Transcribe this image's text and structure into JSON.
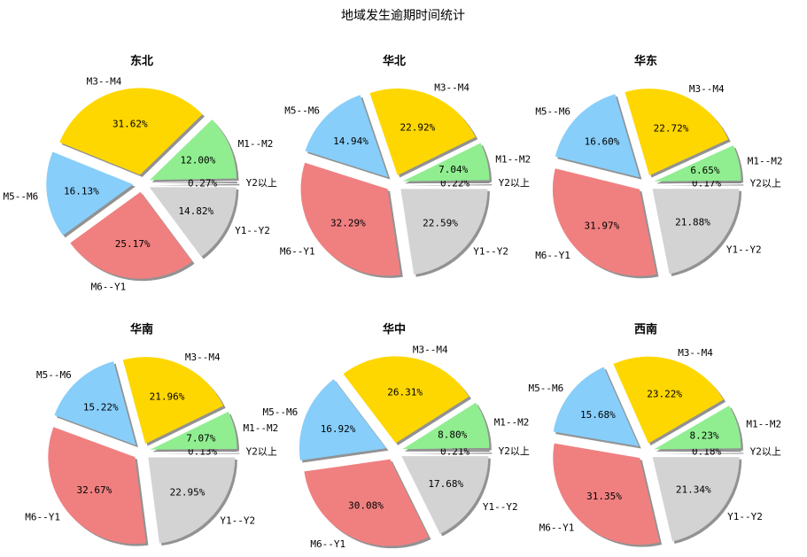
{
  "title": "地域发生逾期时间统计",
  "chart_data": [
    {
      "type": "pie",
      "title": "东北",
      "categories": [
        "Y2以上",
        "M1--M2",
        "M3--M4",
        "M5--M6",
        "M6--Y1",
        "Y1--Y2"
      ],
      "values": [
        0.27,
        12.0,
        31.62,
        16.13,
        25.17,
        14.82
      ],
      "labels": [
        "0.27%",
        "12.00%",
        "31.62%",
        "16.13%",
        "25.17%",
        "14.82%"
      ]
    },
    {
      "type": "pie",
      "title": "华北",
      "categories": [
        "Y2以上",
        "M1--M2",
        "M3--M4",
        "M5--M6",
        "M6--Y1",
        "Y1--Y2"
      ],
      "values": [
        0.22,
        7.04,
        22.92,
        14.94,
        32.29,
        22.59
      ],
      "labels": [
        "0.22%",
        "7.04%",
        "22.92%",
        "14.94%",
        "32.29%",
        "22.59%"
      ]
    },
    {
      "type": "pie",
      "title": "华东",
      "categories": [
        "Y2以上",
        "M1--M2",
        "M3--M4",
        "M5--M6",
        "M6--Y1",
        "Y1--Y2"
      ],
      "values": [
        0.17,
        6.65,
        22.72,
        16.6,
        31.97,
        21.88
      ],
      "labels": [
        "0.17%",
        "6.65%",
        "22.72%",
        "16.60%",
        "31.97%",
        "21.88%"
      ]
    },
    {
      "type": "pie",
      "title": "华南",
      "categories": [
        "Y2以上",
        "M1--M2",
        "M3--M4",
        "M5--M6",
        "M6--Y1",
        "Y1--Y2"
      ],
      "values": [
        0.13,
        7.07,
        21.96,
        15.22,
        32.67,
        22.95
      ],
      "labels": [
        "0.13%",
        "7.07%",
        "21.96%",
        "15.22%",
        "32.67%",
        "22.95%"
      ]
    },
    {
      "type": "pie",
      "title": "华中",
      "categories": [
        "Y2以上",
        "M1--M2",
        "M3--M4",
        "M5--M6",
        "M6--Y1",
        "Y1--Y2"
      ],
      "values": [
        0.21,
        8.8,
        26.31,
        16.92,
        30.08,
        17.68
      ],
      "labels": [
        "0.21%",
        "8.80%",
        "26.31%",
        "16.92%",
        "30.08%",
        "17.68%"
      ]
    },
    {
      "type": "pie",
      "title": "西南",
      "categories": [
        "Y2以上",
        "M1--M2",
        "M3--M4",
        "M5--M6",
        "M6--Y1",
        "Y1--Y2"
      ],
      "values": [
        0.18,
        8.23,
        23.22,
        15.68,
        31.35,
        21.34
      ],
      "labels": [
        "0.18%",
        "8.23%",
        "23.22%",
        "15.68%",
        "31.35%",
        "21.34%"
      ]
    }
  ],
  "colors": {
    "Y2以上": "#808080",
    "M1--M2": "#90ee90",
    "M3--M4": "#ffd700",
    "M5--M6": "#87cefa",
    "M6--Y1": "#f08080",
    "Y1--Y2": "#d3d3d3",
    "shadow": "#7f7f7f"
  }
}
